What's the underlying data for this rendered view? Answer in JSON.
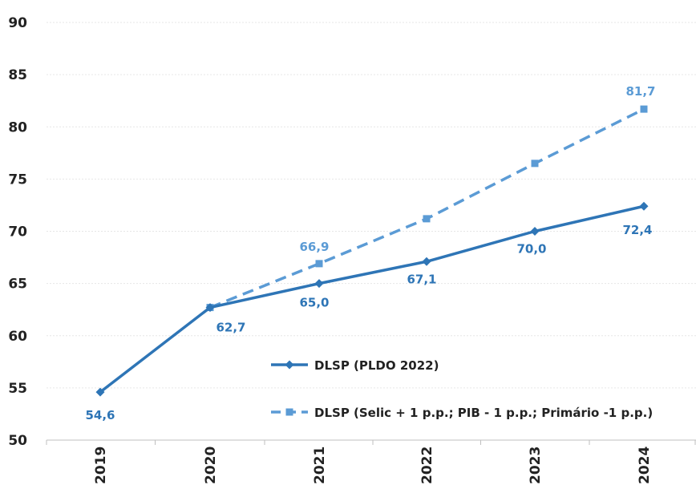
{
  "chart_data": {
    "type": "line",
    "categories": [
      "2019",
      "2020",
      "2021",
      "2022",
      "2023",
      "2024"
    ],
    "ylim": [
      50,
      90
    ],
    "yticks": [
      50,
      55,
      60,
      65,
      70,
      75,
      80,
      85,
      90
    ],
    "grid": true,
    "legend_position": "bottom-right",
    "series": [
      {
        "name": "DLSP (PLDO 2022)",
        "values": [
          54.6,
          62.7,
          65.0,
          67.1,
          70.0,
          72.4
        ],
        "labels": [
          "54,6",
          "62,7",
          "65,0",
          "67,1",
          "70,0",
          "72,4"
        ],
        "color": "#2E75B6",
        "line_style": "solid",
        "marker": "diamond"
      },
      {
        "name": "DLSP (Selic + 1 p.p.; PIB - 1 p.p.; Primário -1 p.p.)",
        "values": [
          null,
          62.7,
          66.9,
          71.2,
          76.5,
          81.7
        ],
        "labels": [
          "",
          "",
          "66,9",
          "",
          "",
          "81,7"
        ],
        "color": "#5B9BD5",
        "line_style": "dashed",
        "marker": "square"
      }
    ]
  }
}
